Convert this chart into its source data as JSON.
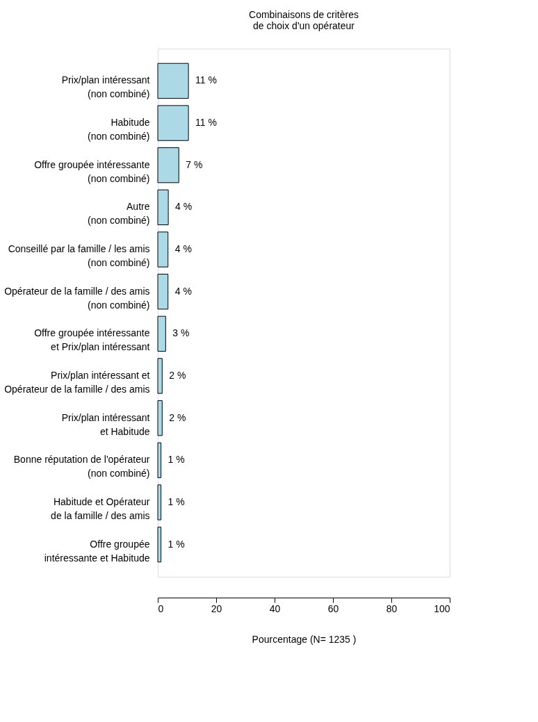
{
  "chart_data": {
    "type": "bar",
    "orientation": "horizontal",
    "title": "Combinaisons de critères\nde choix d'un opérateur",
    "xlabel": "Pourcentage (N= 1235 )",
    "categories": [
      "Prix/plan intéressant\n(non combiné)",
      "Habitude\n(non combiné)",
      "Offre groupée intéressante\n(non combiné)",
      "Autre\n(non combiné)",
      "Conseillé par la famille / les amis\n(non combiné)",
      "Opérateur de la famille / des amis\n(non combiné)",
      "Offre groupée intéressante\net Prix/plan intéressant",
      "Prix/plan intéressant et\nOpérateur de la famille / des amis",
      "Prix/plan intéressant\net Habitude",
      "Bonne réputation de l'opérateur\n(non combiné)",
      "Habitude et Opérateur\nde la famille / des amis",
      "Offre groupée\nintéressante et Habitude"
    ],
    "values": [
      10.5,
      10.5,
      7.2,
      3.6,
      3.5,
      3.5,
      2.7,
      1.5,
      1.5,
      1.1,
      1.1,
      1.1
    ],
    "value_labels": [
      "11 %",
      "11 %",
      "7 %",
      "4 %",
      "4 %",
      "4 %",
      "3 %",
      "2 %",
      "2 %",
      "1 %",
      "1 %",
      "1 %"
    ],
    "color": "#add8e6",
    "xlim": [
      0,
      100
    ],
    "xticks": [
      0,
      20,
      40,
      60,
      80,
      100
    ],
    "grid": false
  }
}
